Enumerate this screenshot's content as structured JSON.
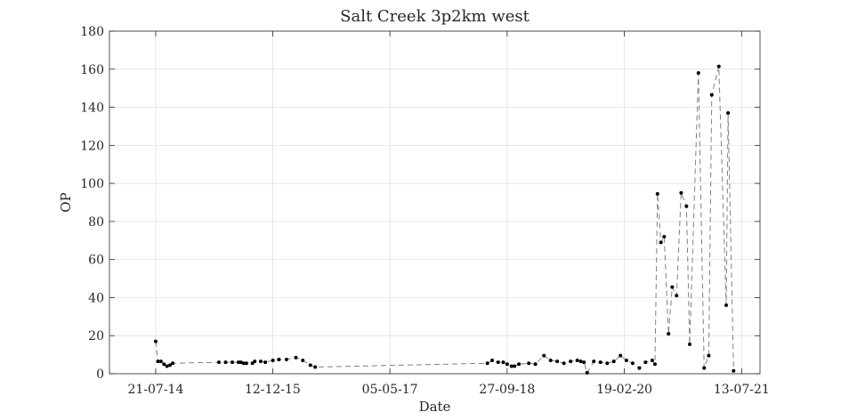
{
  "chart_data": {
    "type": "line",
    "title": "Salt Creek 3p2km west",
    "xlabel": "Date",
    "ylabel": "OP",
    "xlim": [
      "2014-01-01",
      "2021-10-01"
    ],
    "ylim": [
      0,
      180
    ],
    "y_ticks": [
      0,
      20,
      40,
      60,
      80,
      100,
      120,
      140,
      160,
      180
    ],
    "x_ticks": [
      {
        "date": "2014-07-21",
        "label": "21-07-14"
      },
      {
        "date": "2015-12-12",
        "label": "12-12-15"
      },
      {
        "date": "2017-05-05",
        "label": "05-05-17"
      },
      {
        "date": "2018-09-27",
        "label": "27-09-18"
      },
      {
        "date": "2020-02-19",
        "label": "19-02-20"
      },
      {
        "date": "2021-07-13",
        "label": "13-07-21"
      }
    ],
    "grid": true,
    "line_style": "dashed",
    "line_color": "#808080",
    "marker_color": "#000000",
    "series": [
      {
        "points": [
          {
            "x": "2014-07-21",
            "y": 17
          },
          {
            "x": "2014-07-31",
            "y": 6.5
          },
          {
            "x": "2014-08-13",
            "y": 6.5
          },
          {
            "x": "2014-08-26",
            "y": 5
          },
          {
            "x": "2014-09-08",
            "y": 4
          },
          {
            "x": "2014-09-21",
            "y": 4.5
          },
          {
            "x": "2014-10-03",
            "y": 5.5
          },
          {
            "x": "2015-04-22",
            "y": 6
          },
          {
            "x": "2015-05-21",
            "y": 6
          },
          {
            "x": "2015-06-19",
            "y": 6
          },
          {
            "x": "2015-07-16",
            "y": 6
          },
          {
            "x": "2015-07-27",
            "y": 6
          },
          {
            "x": "2015-08-08",
            "y": 5.5
          },
          {
            "x": "2015-08-20",
            "y": 5.5
          },
          {
            "x": "2015-09-15",
            "y": 5.5
          },
          {
            "x": "2015-09-25",
            "y": 6.5
          },
          {
            "x": "2015-10-21",
            "y": 6.5
          },
          {
            "x": "2015-11-10",
            "y": 6
          },
          {
            "x": "2015-12-13",
            "y": 7
          },
          {
            "x": "2016-01-08",
            "y": 7.5
          },
          {
            "x": "2016-02-10",
            "y": 7.5
          },
          {
            "x": "2016-03-22",
            "y": 8.5
          },
          {
            "x": "2016-04-21",
            "y": 7
          },
          {
            "x": "2016-05-24",
            "y": 4.5
          },
          {
            "x": "2016-06-14",
            "y": 3.5
          },
          {
            "x": "2018-07-03",
            "y": 5.5
          },
          {
            "x": "2018-07-24",
            "y": 7
          },
          {
            "x": "2018-08-19",
            "y": 6
          },
          {
            "x": "2018-09-10",
            "y": 6
          },
          {
            "x": "2018-09-27",
            "y": 5
          },
          {
            "x": "2018-10-16",
            "y": 4
          },
          {
            "x": "2018-10-29",
            "y": 4
          },
          {
            "x": "2018-11-17",
            "y": 5
          },
          {
            "x": "2018-12-30",
            "y": 5.5
          },
          {
            "x": "2019-01-28",
            "y": 5
          },
          {
            "x": "2019-03-06",
            "y": 9.5
          },
          {
            "x": "2019-04-04",
            "y": 7
          },
          {
            "x": "2019-05-03",
            "y": 6.5
          },
          {
            "x": "2019-06-01",
            "y": 5.5
          },
          {
            "x": "2019-06-30",
            "y": 6.5
          },
          {
            "x": "2019-07-29",
            "y": 7
          },
          {
            "x": "2019-08-13",
            "y": 6.5
          },
          {
            "x": "2019-08-27",
            "y": 6
          },
          {
            "x": "2019-09-10",
            "y": 0.5
          },
          {
            "x": "2019-10-09",
            "y": 6.5
          },
          {
            "x": "2019-11-07",
            "y": 6
          },
          {
            "x": "2019-12-06",
            "y": 5.5
          },
          {
            "x": "2020-01-04",
            "y": 6.5
          },
          {
            "x": "2020-02-02",
            "y": 9.5
          },
          {
            "x": "2020-02-28",
            "y": 7
          },
          {
            "x": "2020-03-26",
            "y": 5.5
          },
          {
            "x": "2020-04-24",
            "y": 3
          },
          {
            "x": "2020-05-21",
            "y": 6
          },
          {
            "x": "2020-06-19",
            "y": 7
          },
          {
            "x": "2020-07-01",
            "y": 5
          },
          {
            "x": "2020-07-12",
            "y": 94.5
          },
          {
            "x": "2020-07-27",
            "y": 69
          },
          {
            "x": "2020-08-10",
            "y": 72
          },
          {
            "x": "2020-08-29",
            "y": 21
          },
          {
            "x": "2020-09-14",
            "y": 45.5
          },
          {
            "x": "2020-10-03",
            "y": 41
          },
          {
            "x": "2020-10-23",
            "y": 95
          },
          {
            "x": "2020-11-15",
            "y": 88
          },
          {
            "x": "2020-11-29",
            "y": 15.5
          },
          {
            "x": "2021-01-06",
            "y": 158
          },
          {
            "x": "2021-01-31",
            "y": 3
          },
          {
            "x": "2021-02-20",
            "y": 9.5
          },
          {
            "x": "2021-03-05",
            "y": 146.5
          },
          {
            "x": "2021-04-05",
            "y": 161.5
          },
          {
            "x": "2021-05-07",
            "y": 36
          },
          {
            "x": "2021-05-15",
            "y": 137
          },
          {
            "x": "2021-06-08",
            "y": 1.5
          }
        ]
      }
    ]
  }
}
